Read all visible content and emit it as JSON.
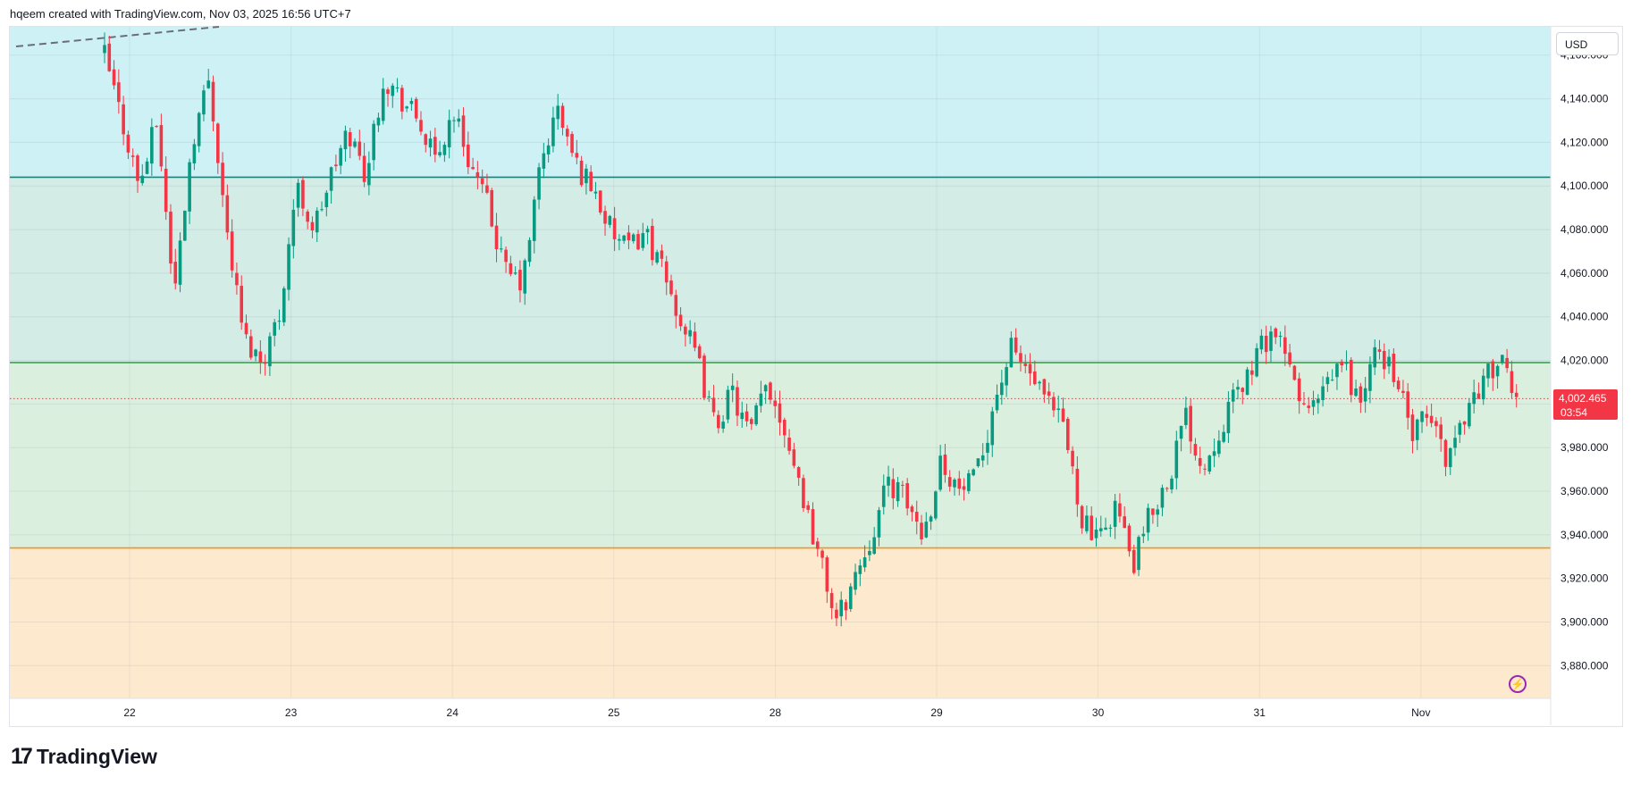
{
  "header": {
    "text": "hqeem created with TradingView.com, Nov 03, 2025 16:56 UTC+7"
  },
  "currency": "USD",
  "last_price": {
    "value": "4,002.465",
    "countdown": "03:54"
  },
  "branding": {
    "mark": "17",
    "name": "TradingView"
  },
  "colors": {
    "up": "#089981",
    "down": "#f23645",
    "zone_top": "#cdf1f4",
    "zone_mid_upper": "#d3ece6",
    "zone_mid_lower": "#dbefdf",
    "zone_bottom": "#fde9cd",
    "line_teal": "#1f7f7a",
    "line_green": "#2e9c44",
    "line_orange": "#f7931a"
  },
  "chart_data": {
    "type": "candlestick",
    "x_tick_labels": [
      "22",
      "23",
      "24",
      "25",
      "28",
      "29",
      "30",
      "31",
      "Nov"
    ],
    "y_tick_labels": [
      "4,160.000",
      "4,140.000",
      "4,120.000",
      "4,100.000",
      "4,080.000",
      "4,060.000",
      "4,040.000",
      "4,020.000",
      "4,000.000",
      "3,980.000",
      "3,960.000",
      "3,940.000",
      "3,920.000",
      "3,900.000",
      "3,880.000"
    ],
    "ylim": [
      3865,
      4173
    ],
    "horizontal_levels": [
      {
        "value": 4104,
        "color": "#1f7f7a"
      },
      {
        "value": 4019,
        "color": "#2e9c44"
      },
      {
        "value": 3934,
        "color": "#f7931a"
      }
    ],
    "last_price_value": 4002.465,
    "trend_line": {
      "from": {
        "date": "Oct 21",
        "price": 4164
      },
      "to": {
        "date": "Oct 22",
        "price": 4173
      }
    },
    "price_path": [
      {
        "date": "Oct 21",
        "price": 4160
      },
      {
        "date": "Oct 22",
        "price": 4130
      },
      {
        "date": "Oct 22",
        "price": 4100
      },
      {
        "date": "Oct 22",
        "price": 4130
      },
      {
        "date": "Oct 22",
        "price": 4050
      },
      {
        "date": "Oct 22",
        "price": 4120
      },
      {
        "date": "Oct 22",
        "price": 4150
      },
      {
        "date": "Oct 22",
        "price": 4080
      },
      {
        "date": "Oct 22",
        "price": 4030
      },
      {
        "date": "Oct 22",
        "price": 4020
      },
      {
        "date": "Oct 23",
        "price": 4040
      },
      {
        "date": "Oct 23",
        "price": 4100
      },
      {
        "date": "Oct 23",
        "price": 4080
      },
      {
        "date": "Oct 23",
        "price": 4105
      },
      {
        "date": "Oct 23",
        "price": 4125
      },
      {
        "date": "Oct 23",
        "price": 4105
      },
      {
        "date": "Oct 23",
        "price": 4150
      },
      {
        "date": "Oct 23",
        "price": 4140
      },
      {
        "date": "Oct 24",
        "price": 4130
      },
      {
        "date": "Oct 24",
        "price": 4110
      },
      {
        "date": "Oct 24",
        "price": 4135
      },
      {
        "date": "Oct 24",
        "price": 4110
      },
      {
        "date": "Oct 24",
        "price": 4090
      },
      {
        "date": "Oct 24",
        "price": 4060
      },
      {
        "date": "Oct 24",
        "price": 4055
      },
      {
        "date": "Oct 24",
        "price": 4110
      },
      {
        "date": "Oct 24",
        "price": 4135
      },
      {
        "date": "Oct 25",
        "price": 4110
      },
      {
        "date": "Oct 25",
        "price": 4100
      },
      {
        "date": "Oct 25",
        "price": 4080
      },
      {
        "date": "Oct 25",
        "price": 4070
      },
      {
        "date": "Oct 25",
        "price": 4080
      },
      {
        "date": "Oct 25",
        "price": 4060
      },
      {
        "date": "Oct 25",
        "price": 4040
      },
      {
        "date": "Oct 25",
        "price": 4020
      },
      {
        "date": "Oct 28",
        "price": 3990
      },
      {
        "date": "Oct 28",
        "price": 4005
      },
      {
        "date": "Oct 28",
        "price": 3985
      },
      {
        "date": "Oct 28",
        "price": 4010
      },
      {
        "date": "Oct 28",
        "price": 3990
      },
      {
        "date": "Oct 28",
        "price": 3960
      },
      {
        "date": "Oct 28",
        "price": 3930
      },
      {
        "date": "Oct 28",
        "price": 3900
      },
      {
        "date": "Oct 28",
        "price": 3920
      },
      {
        "date": "Oct 28",
        "price": 3940
      },
      {
        "date": "Oct 29",
        "price": 3965
      },
      {
        "date": "Oct 29",
        "price": 3955
      },
      {
        "date": "Oct 29",
        "price": 3940
      },
      {
        "date": "Oct 29",
        "price": 3975
      },
      {
        "date": "Oct 29",
        "price": 3960
      },
      {
        "date": "Oct 29",
        "price": 3965
      },
      {
        "date": "Oct 29",
        "price": 4000
      },
      {
        "date": "Oct 29",
        "price": 4025
      },
      {
        "date": "Oct 29",
        "price": 4015
      },
      {
        "date": "Oct 29",
        "price": 4000
      },
      {
        "date": "Oct 30",
        "price": 3990
      },
      {
        "date": "Oct 30",
        "price": 3950
      },
      {
        "date": "Oct 30",
        "price": 3935
      },
      {
        "date": "Oct 30",
        "price": 3955
      },
      {
        "date": "Oct 30",
        "price": 3925
      },
      {
        "date": "Oct 30",
        "price": 3950
      },
      {
        "date": "Oct 30",
        "price": 3965
      },
      {
        "date": "Oct 30",
        "price": 3995
      },
      {
        "date": "Oct 30",
        "price": 3970
      },
      {
        "date": "Oct 31",
        "price": 3990
      },
      {
        "date": "Oct 31",
        "price": 4005
      },
      {
        "date": "Oct 31",
        "price": 4020
      },
      {
        "date": "Oct 31",
        "price": 4035
      },
      {
        "date": "Oct 31",
        "price": 4015
      },
      {
        "date": "Oct 31",
        "price": 3995
      },
      {
        "date": "Oct 31",
        "price": 4005
      },
      {
        "date": "Oct 31",
        "price": 4020
      },
      {
        "date": "Oct 31",
        "price": 4000
      },
      {
        "date": "Oct 31",
        "price": 4025
      },
      {
        "date": "Oct 31",
        "price": 4015
      },
      {
        "date": "Nov 01",
        "price": 3985
      },
      {
        "date": "Nov 01",
        "price": 3995
      },
      {
        "date": "Nov 01",
        "price": 3975
      },
      {
        "date": "Nov 01",
        "price": 3995
      },
      {
        "date": "Nov 01",
        "price": 4010
      },
      {
        "date": "Nov 01",
        "price": 4020
      },
      {
        "date": "Nov 01",
        "price": 4002
      }
    ]
  }
}
